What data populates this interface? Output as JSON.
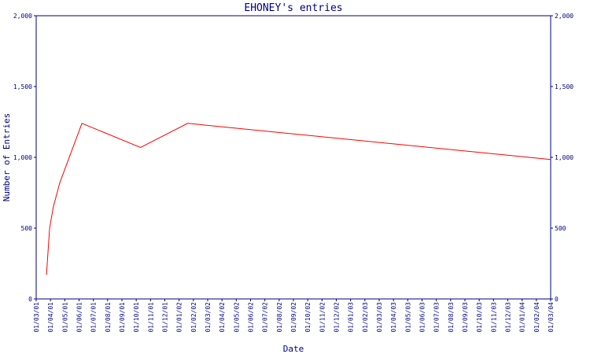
{
  "chart_data": {
    "type": "line",
    "title": "EHONEY's entries",
    "x_label": "Date",
    "y_label": "Number of Entries",
    "x": [
      0.72,
      0.94,
      1.2,
      1.65,
      3.2,
      7.3,
      10.6,
      36
    ],
    "series": [
      {
        "name": "entries",
        "color": "#ff0000",
        "values": [
          170,
          500,
          650,
          820,
          1240,
          1070,
          1240,
          985
        ]
      }
    ],
    "xlim": [
      0,
      36
    ],
    "xticks": [
      {
        "value": 0,
        "label": "01/03/01"
      },
      {
        "value": 1,
        "label": "01/04/01"
      },
      {
        "value": 2,
        "label": "01/05/01"
      },
      {
        "value": 3,
        "label": "01/06/01"
      },
      {
        "value": 4,
        "label": "01/07/01"
      },
      {
        "value": 5,
        "label": "01/08/01"
      },
      {
        "value": 6,
        "label": "01/09/01"
      },
      {
        "value": 7,
        "label": "01/10/01"
      },
      {
        "value": 8,
        "label": "01/11/01"
      },
      {
        "value": 9,
        "label": "01/12/01"
      },
      {
        "value": 10,
        "label": "01/01/02"
      },
      {
        "value": 11,
        "label": "01/02/02"
      },
      {
        "value": 12,
        "label": "01/03/02"
      },
      {
        "value": 13,
        "label": "01/04/02"
      },
      {
        "value": 14,
        "label": "01/05/02"
      },
      {
        "value": 15,
        "label": "01/06/02"
      },
      {
        "value": 16,
        "label": "01/07/02"
      },
      {
        "value": 17,
        "label": "01/08/02"
      },
      {
        "value": 18,
        "label": "01/09/02"
      },
      {
        "value": 19,
        "label": "01/10/02"
      },
      {
        "value": 20,
        "label": "01/11/02"
      },
      {
        "value": 21,
        "label": "01/12/02"
      },
      {
        "value": 22,
        "label": "01/01/03"
      },
      {
        "value": 23,
        "label": "01/02/03"
      },
      {
        "value": 24,
        "label": "01/03/03"
      },
      {
        "value": 25,
        "label": "01/04/03"
      },
      {
        "value": 26,
        "label": "01/05/03"
      },
      {
        "value": 27,
        "label": "01/06/03"
      },
      {
        "value": 28,
        "label": "01/07/03"
      },
      {
        "value": 29,
        "label": "01/08/03"
      },
      {
        "value": 30,
        "label": "01/09/03"
      },
      {
        "value": 31,
        "label": "01/10/03"
      },
      {
        "value": 32,
        "label": "01/11/03"
      },
      {
        "value": 33,
        "label": "01/12/03"
      },
      {
        "value": 34,
        "label": "01/01/04"
      },
      {
        "value": 35,
        "label": "01/02/04"
      },
      {
        "value": 36,
        "label": "01/03/04"
      }
    ],
    "ylim": [
      0,
      2000
    ],
    "yticks": [
      0,
      {
        "value": 500,
        "label": "500"
      },
      {
        "value": 1000,
        "label": "1,000"
      },
      {
        "value": 1500,
        "label": "1,500"
      },
      {
        "value": 2000,
        "label": "2,000"
      }
    ],
    "grid": false
  }
}
